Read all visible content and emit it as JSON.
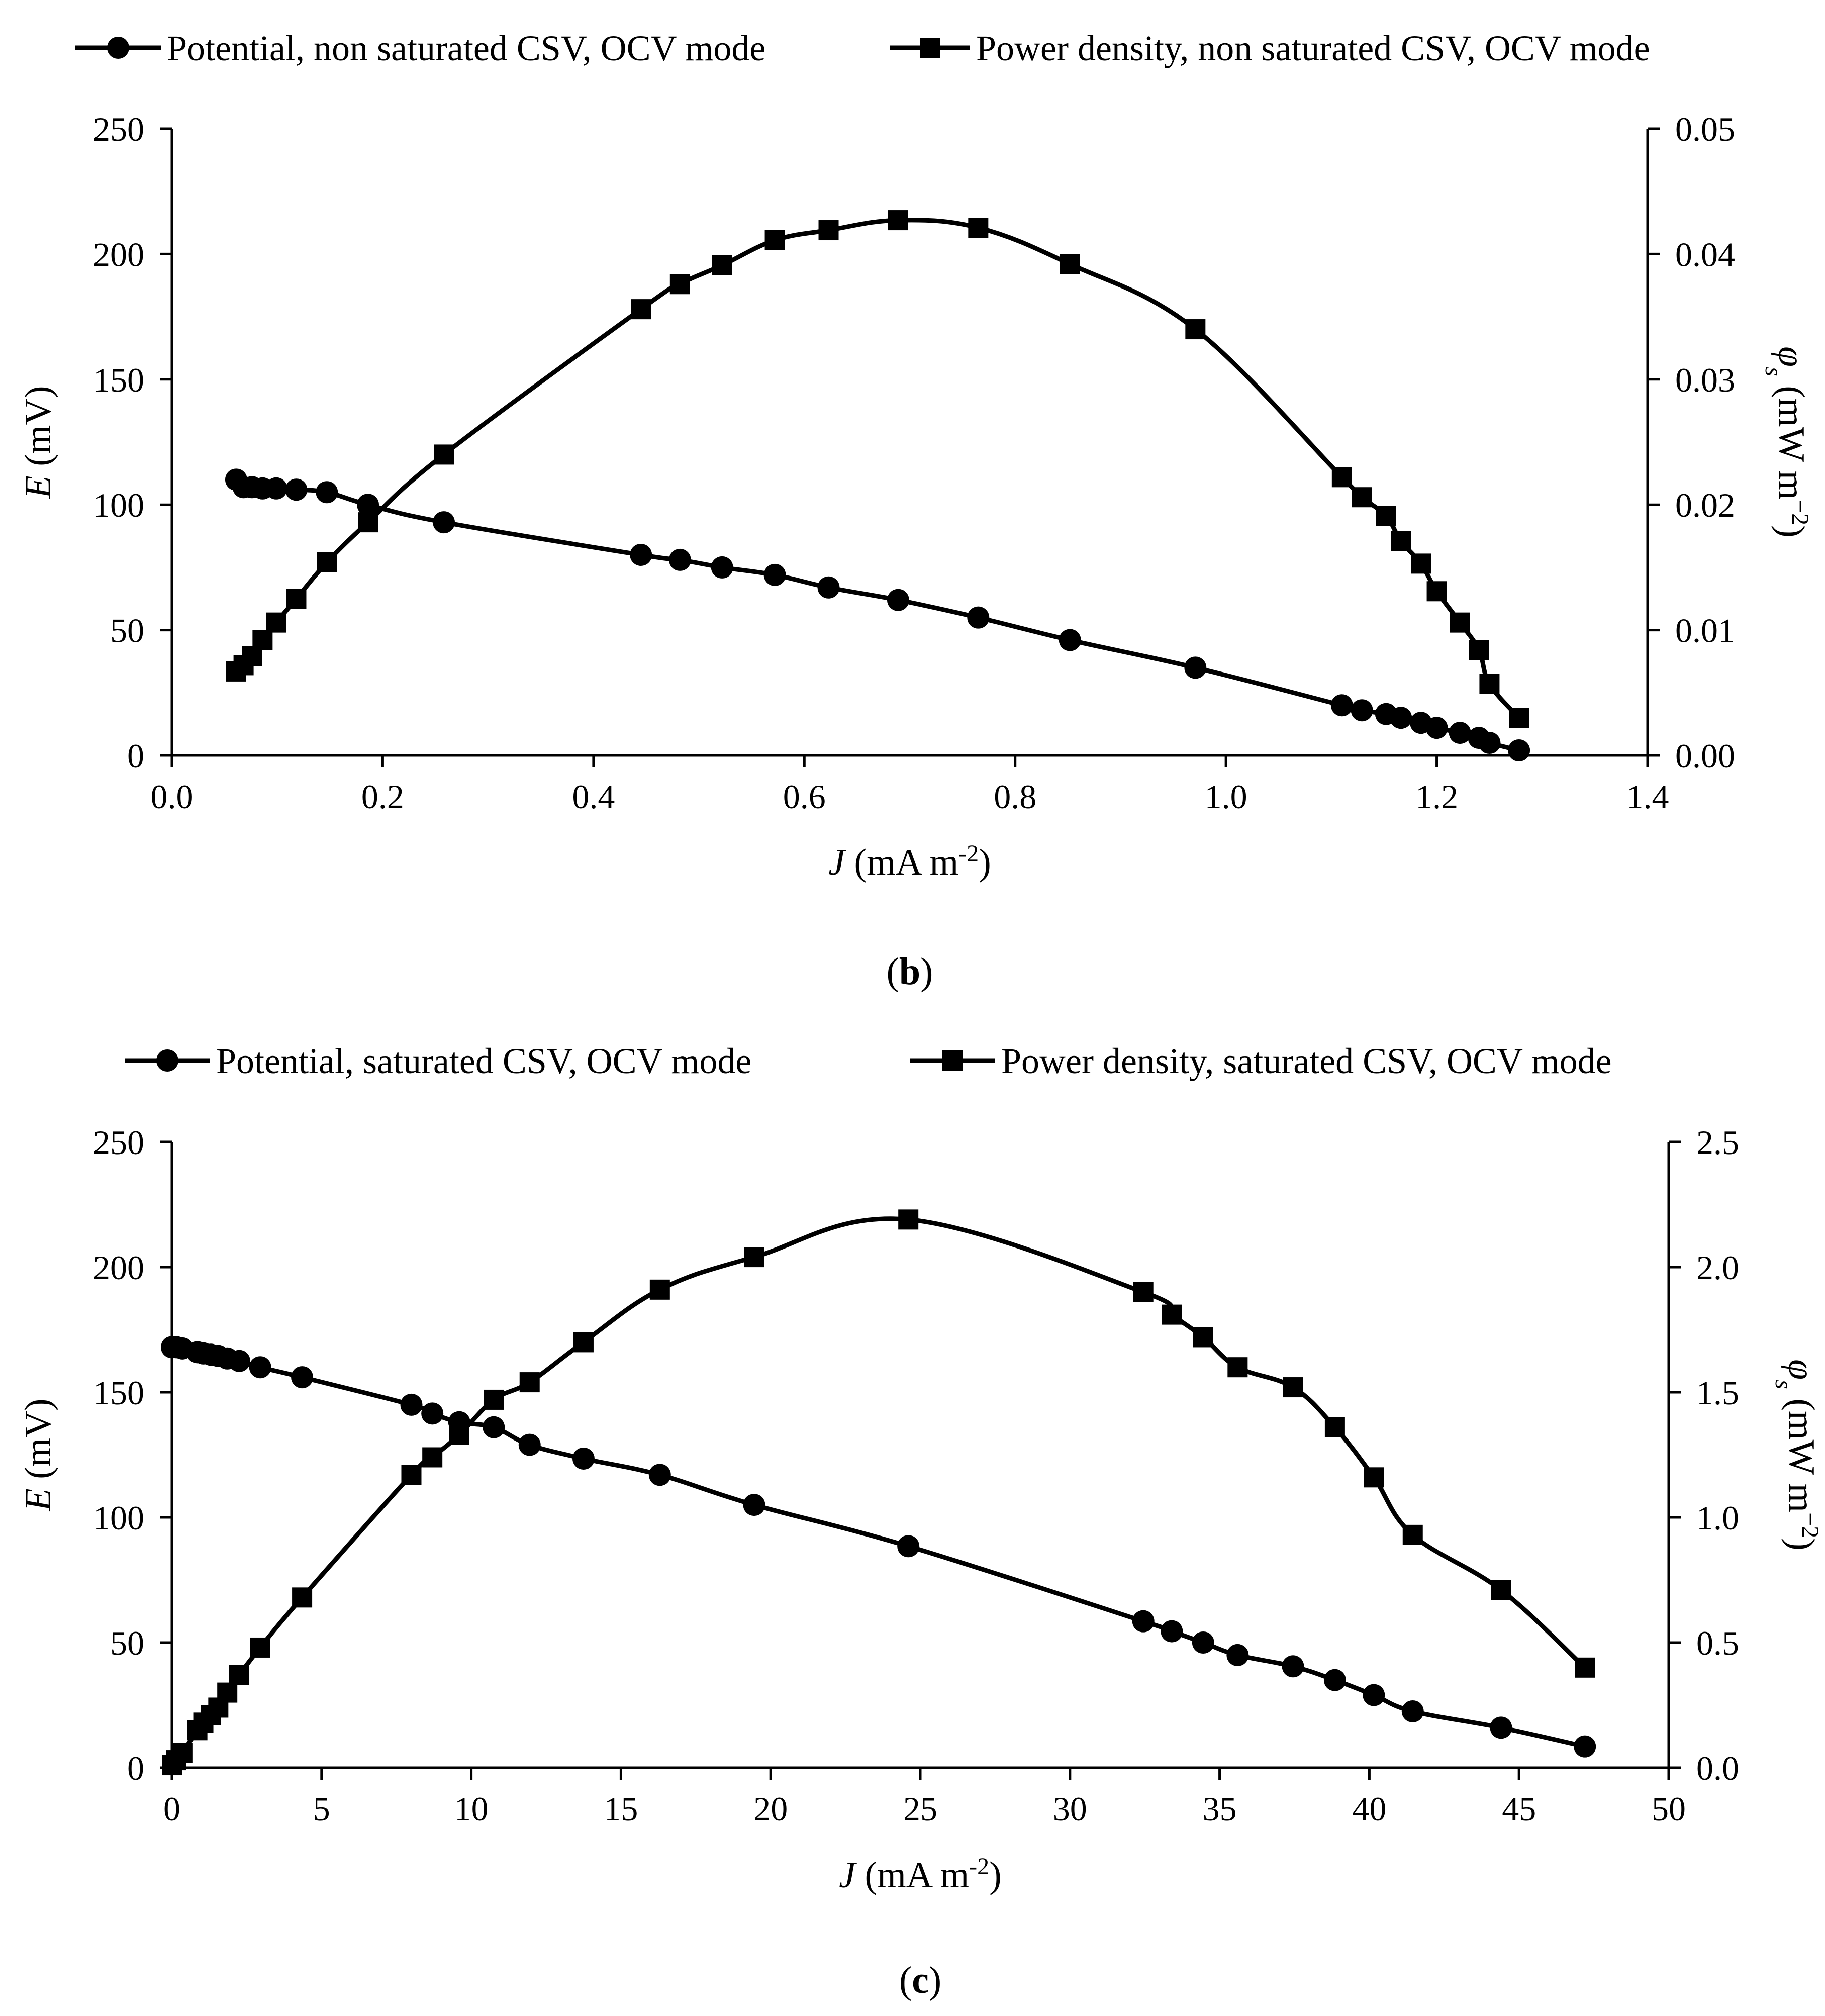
{
  "chart_data": [
    {
      "type": "line",
      "panel_label_prefix": "(",
      "panel_label_letter": "b",
      "panel_label_suffix": ")",
      "legend": [
        {
          "name": "Potential, non saturated CSV, OCV mode",
          "marker": "circle"
        },
        {
          "name": "Power density, non saturated CSV, OCV mode",
          "marker": "square"
        }
      ],
      "xlabel_var": "J",
      "xlabel_unit": " (mA m",
      "xlabel_exp": "-2",
      "xlabel_close": ")",
      "ylabel_left_var": "E",
      "ylabel_left_unit": " (mV)",
      "ylabel_right_var": "φ",
      "ylabel_right_sub": "s",
      "ylabel_right_unit": " (mW m",
      "ylabel_right_exp": "−2",
      "ylabel_right_close": ")",
      "xlim": [
        0,
        1.4
      ],
      "xticks": [
        "0.0",
        "0.2",
        "0.4",
        "0.6",
        "0.8",
        "1.0",
        "1.2",
        "1.4"
      ],
      "ylim_left": [
        0,
        250
      ],
      "yticks_left": [
        "0",
        "50",
        "100",
        "150",
        "200",
        "250"
      ],
      "ylim_right": [
        0,
        0.05
      ],
      "yticks_right": [
        "0.00",
        "0.01",
        "0.02",
        "0.03",
        "0.04",
        "0.05"
      ],
      "series": [
        {
          "name": "Potential, non saturated CSV, OCV mode",
          "axis": "left",
          "marker": "circle",
          "x": [
            0.061,
            0.068,
            0.076,
            0.086,
            0.099,
            0.118,
            0.147,
            0.186,
            0.258,
            0.445,
            0.482,
            0.522,
            0.572,
            0.623,
            0.689,
            0.765,
            0.852,
            0.971,
            1.11,
            1.129,
            1.152,
            1.166,
            1.185,
            1.2,
            1.222,
            1.24,
            1.25,
            1.278
          ],
          "y": [
            110,
            107,
            107,
            106.5,
            106.5,
            106,
            105,
            100,
            93,
            80,
            78,
            75,
            72,
            67,
            62,
            55,
            46,
            35,
            20,
            18,
            16.5,
            15,
            13,
            11,
            9,
            7,
            5,
            2
          ]
        },
        {
          "name": "Power density, non saturated CSV, OCV mode",
          "axis": "right",
          "marker": "square",
          "x": [
            0.061,
            0.068,
            0.076,
            0.086,
            0.099,
            0.118,
            0.147,
            0.186,
            0.258,
            0.445,
            0.482,
            0.522,
            0.572,
            0.623,
            0.689,
            0.765,
            0.852,
            0.971,
            1.11,
            1.129,
            1.152,
            1.166,
            1.185,
            1.2,
            1.222,
            1.24,
            1.25,
            1.278
          ],
          "y": [
            0.0067,
            0.0072,
            0.0079,
            0.0092,
            0.0106,
            0.0125,
            0.0154,
            0.0186,
            0.024,
            0.0356,
            0.0376,
            0.0391,
            0.0411,
            0.0419,
            0.0427,
            0.0421,
            0.0392,
            0.034,
            0.0222,
            0.0206,
            0.0191,
            0.0171,
            0.0153,
            0.0131,
            0.0106,
            0.0084,
            0.0057,
            0.003
          ]
        }
      ]
    },
    {
      "type": "line",
      "panel_label_prefix": "(",
      "panel_label_letter": "c",
      "panel_label_suffix": ")",
      "legend": [
        {
          "name": "Potential, saturated CSV, OCV mode",
          "marker": "circle"
        },
        {
          "name": "Power density, saturated CSV, OCV mode",
          "marker": "square"
        }
      ],
      "xlabel_var": "J",
      "xlabel_unit": " (mA m",
      "xlabel_exp": "-2",
      "xlabel_close": ")",
      "ylabel_left_var": "E",
      "ylabel_left_unit": " (mV)",
      "ylabel_right_var": "φ",
      "ylabel_right_sub": "s",
      "ylabel_right_unit": " (mW m",
      "ylabel_right_exp": "−2",
      "ylabel_right_close": ")",
      "xlim": [
        0,
        50
      ],
      "xticks": [
        "0",
        "5",
        "10",
        "15",
        "20",
        "25",
        "30",
        "35",
        "40",
        "45",
        "50"
      ],
      "ylim_left": [
        0,
        250
      ],
      "yticks_left": [
        "0",
        "50",
        "100",
        "150",
        "200",
        "250"
      ],
      "ylim_right": [
        0,
        2.5
      ],
      "yticks_right": [
        "0.0",
        "0.5",
        "1.0",
        "1.5",
        "2.0",
        "2.5"
      ],
      "series": [
        {
          "name": "Potential, saturated CSV, OCV mode",
          "axis": "left",
          "marker": "circle",
          "x": [
            0.0,
            0.15,
            0.35,
            0.85,
            1.05,
            1.3,
            1.55,
            1.85,
            2.25,
            2.95,
            4.35,
            8.0,
            8.7,
            9.6,
            10.75,
            11.95,
            13.75,
            16.3,
            19.45,
            24.6,
            32.45,
            33.4,
            34.45,
            35.6,
            37.45,
            38.85,
            40.15,
            41.45,
            44.4,
            47.2
          ],
          "y": [
            168,
            168,
            167.5,
            166,
            165.5,
            165,
            164.5,
            163.5,
            162.5,
            160,
            156,
            145,
            141.5,
            138,
            136,
            129,
            123.5,
            117,
            105,
            88.5,
            58.5,
            54.5,
            50,
            45,
            40.5,
            35,
            29,
            22.5,
            16,
            8.5
          ]
        },
        {
          "name": "Power density, saturated CSV, OCV mode",
          "axis": "right",
          "marker": "square",
          "x": [
            0.0,
            0.15,
            0.35,
            0.85,
            1.05,
            1.3,
            1.55,
            1.85,
            2.25,
            2.95,
            4.35,
            8.0,
            8.7,
            9.6,
            10.75,
            11.95,
            13.75,
            16.3,
            19.45,
            24.6,
            32.45,
            33.4,
            34.45,
            35.6,
            37.45,
            38.85,
            40.15,
            41.45,
            44.4,
            47.2
          ],
          "y": [
            0.01,
            0.03,
            0.06,
            0.15,
            0.18,
            0.21,
            0.24,
            0.3,
            0.37,
            0.48,
            0.68,
            1.17,
            1.24,
            1.33,
            1.47,
            1.54,
            1.7,
            1.91,
            2.04,
            2.19,
            1.9,
            1.81,
            1.72,
            1.6,
            1.52,
            1.36,
            1.16,
            0.93,
            0.71,
            0.4
          ]
        }
      ]
    }
  ]
}
